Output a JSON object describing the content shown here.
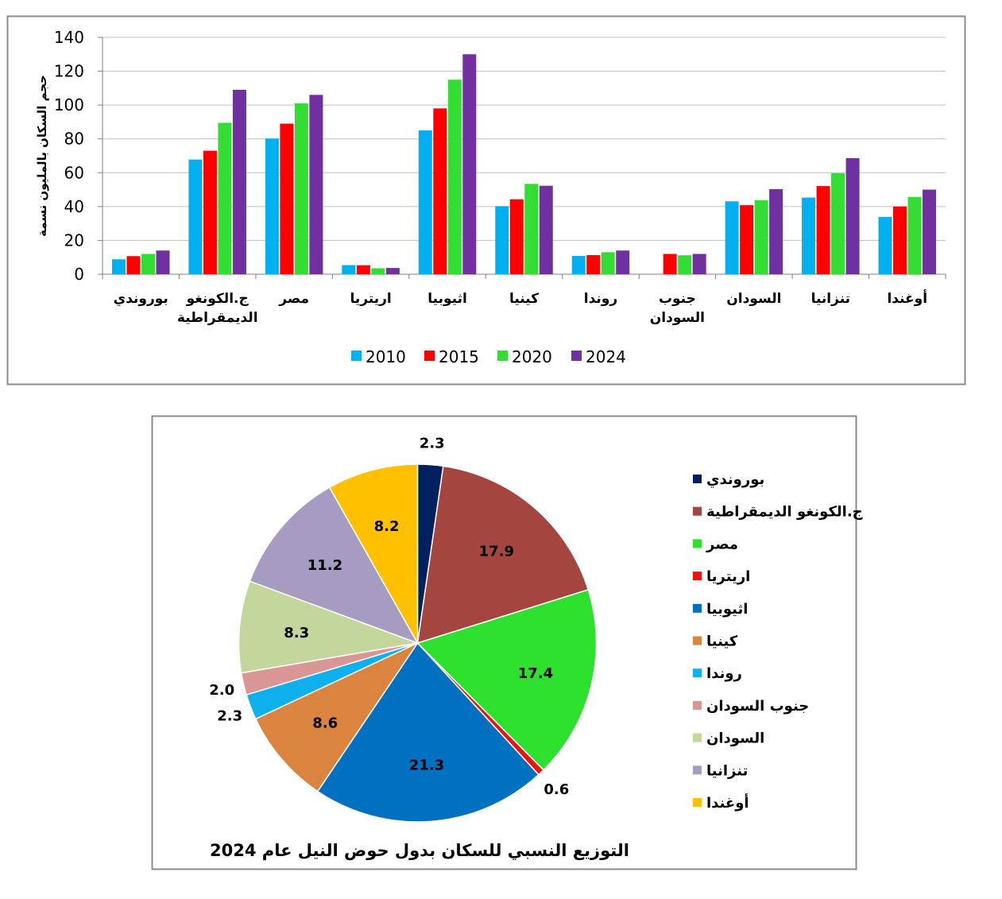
{
  "chart_data": [
    {
      "type": "bar",
      "title": "",
      "xlabel": "",
      "ylabel": "حجم السكان بالمليون نسمة",
      "ylim": [
        0,
        140
      ],
      "yticks": [
        0,
        20,
        40,
        60,
        80,
        100,
        120,
        140
      ],
      "grid": true,
      "legend_position": "bottom",
      "categories": [
        [
          "بوروندي"
        ],
        [
          "ج.الكونغو",
          "الديمقراطية"
        ],
        [
          "مصر"
        ],
        [
          "اريتريا"
        ],
        [
          "اثيوبيا"
        ],
        [
          "كينيا"
        ],
        [
          "روندا"
        ],
        [
          "جنوب",
          "السودان"
        ],
        [
          "السودان"
        ],
        [
          "تنزانيا"
        ],
        [
          "أوغندا"
        ]
      ],
      "series": [
        {
          "name": "2010",
          "color": "#00B0F0",
          "values": [
            8.8,
            67.8,
            80.2,
            5.4,
            85.0,
            40.2,
            10.8,
            null,
            43.1,
            45.3,
            33.9
          ]
        },
        {
          "name": "2015",
          "color": "#FF0000",
          "values": [
            10.7,
            73.0,
            89.0,
            5.3,
            98.0,
            44.3,
            11.3,
            12.0,
            40.8,
            52.1,
            40.0
          ]
        },
        {
          "name": "2020",
          "color": "#33DD33",
          "values": [
            12.0,
            89.5,
            101.0,
            3.5,
            115.0,
            53.4,
            13.0,
            11.2,
            43.8,
            59.7,
            45.7
          ]
        },
        {
          "name": "2024",
          "color": "#7030A0",
          "values": [
            14.0,
            109.0,
            106.0,
            3.7,
            130.0,
            52.3,
            14.0,
            12.0,
            50.3,
            68.6,
            50.0
          ]
        }
      ]
    },
    {
      "type": "pie",
      "title": "التوزيع النسبي للسكان بدول حوض النيل عام 2024",
      "legend_position": "right",
      "slices": [
        {
          "label": "بوروندي",
          "value": 2.3,
          "color": "#002060"
        },
        {
          "label": "ج.الكونغو الديمقراطية",
          "value": 17.9,
          "color": "#A5453F"
        },
        {
          "label": "مصر",
          "value": 17.4,
          "color": "#2EE02E"
        },
        {
          "label": "اريتريا",
          "value": 0.6,
          "color": "#EE1111"
        },
        {
          "label": "اثيوبيا",
          "value": 21.3,
          "color": "#0070C0"
        },
        {
          "label": "كينيا",
          "value": 8.6,
          "color": "#DA843F"
        },
        {
          "label": "روندا",
          "value": 2.3,
          "color": "#0FB0EE"
        },
        {
          "label": "جنوب السودان",
          "value": 2.0,
          "color": "#DA9694"
        },
        {
          "label": "السودان",
          "value": 8.3,
          "color": "#C3D69B"
        },
        {
          "label": "تنزانيا",
          "value": 11.2,
          "color": "#A69CC1"
        },
        {
          "label": "أوغندا",
          "value": 8.2,
          "color": "#FFC000"
        }
      ]
    }
  ]
}
